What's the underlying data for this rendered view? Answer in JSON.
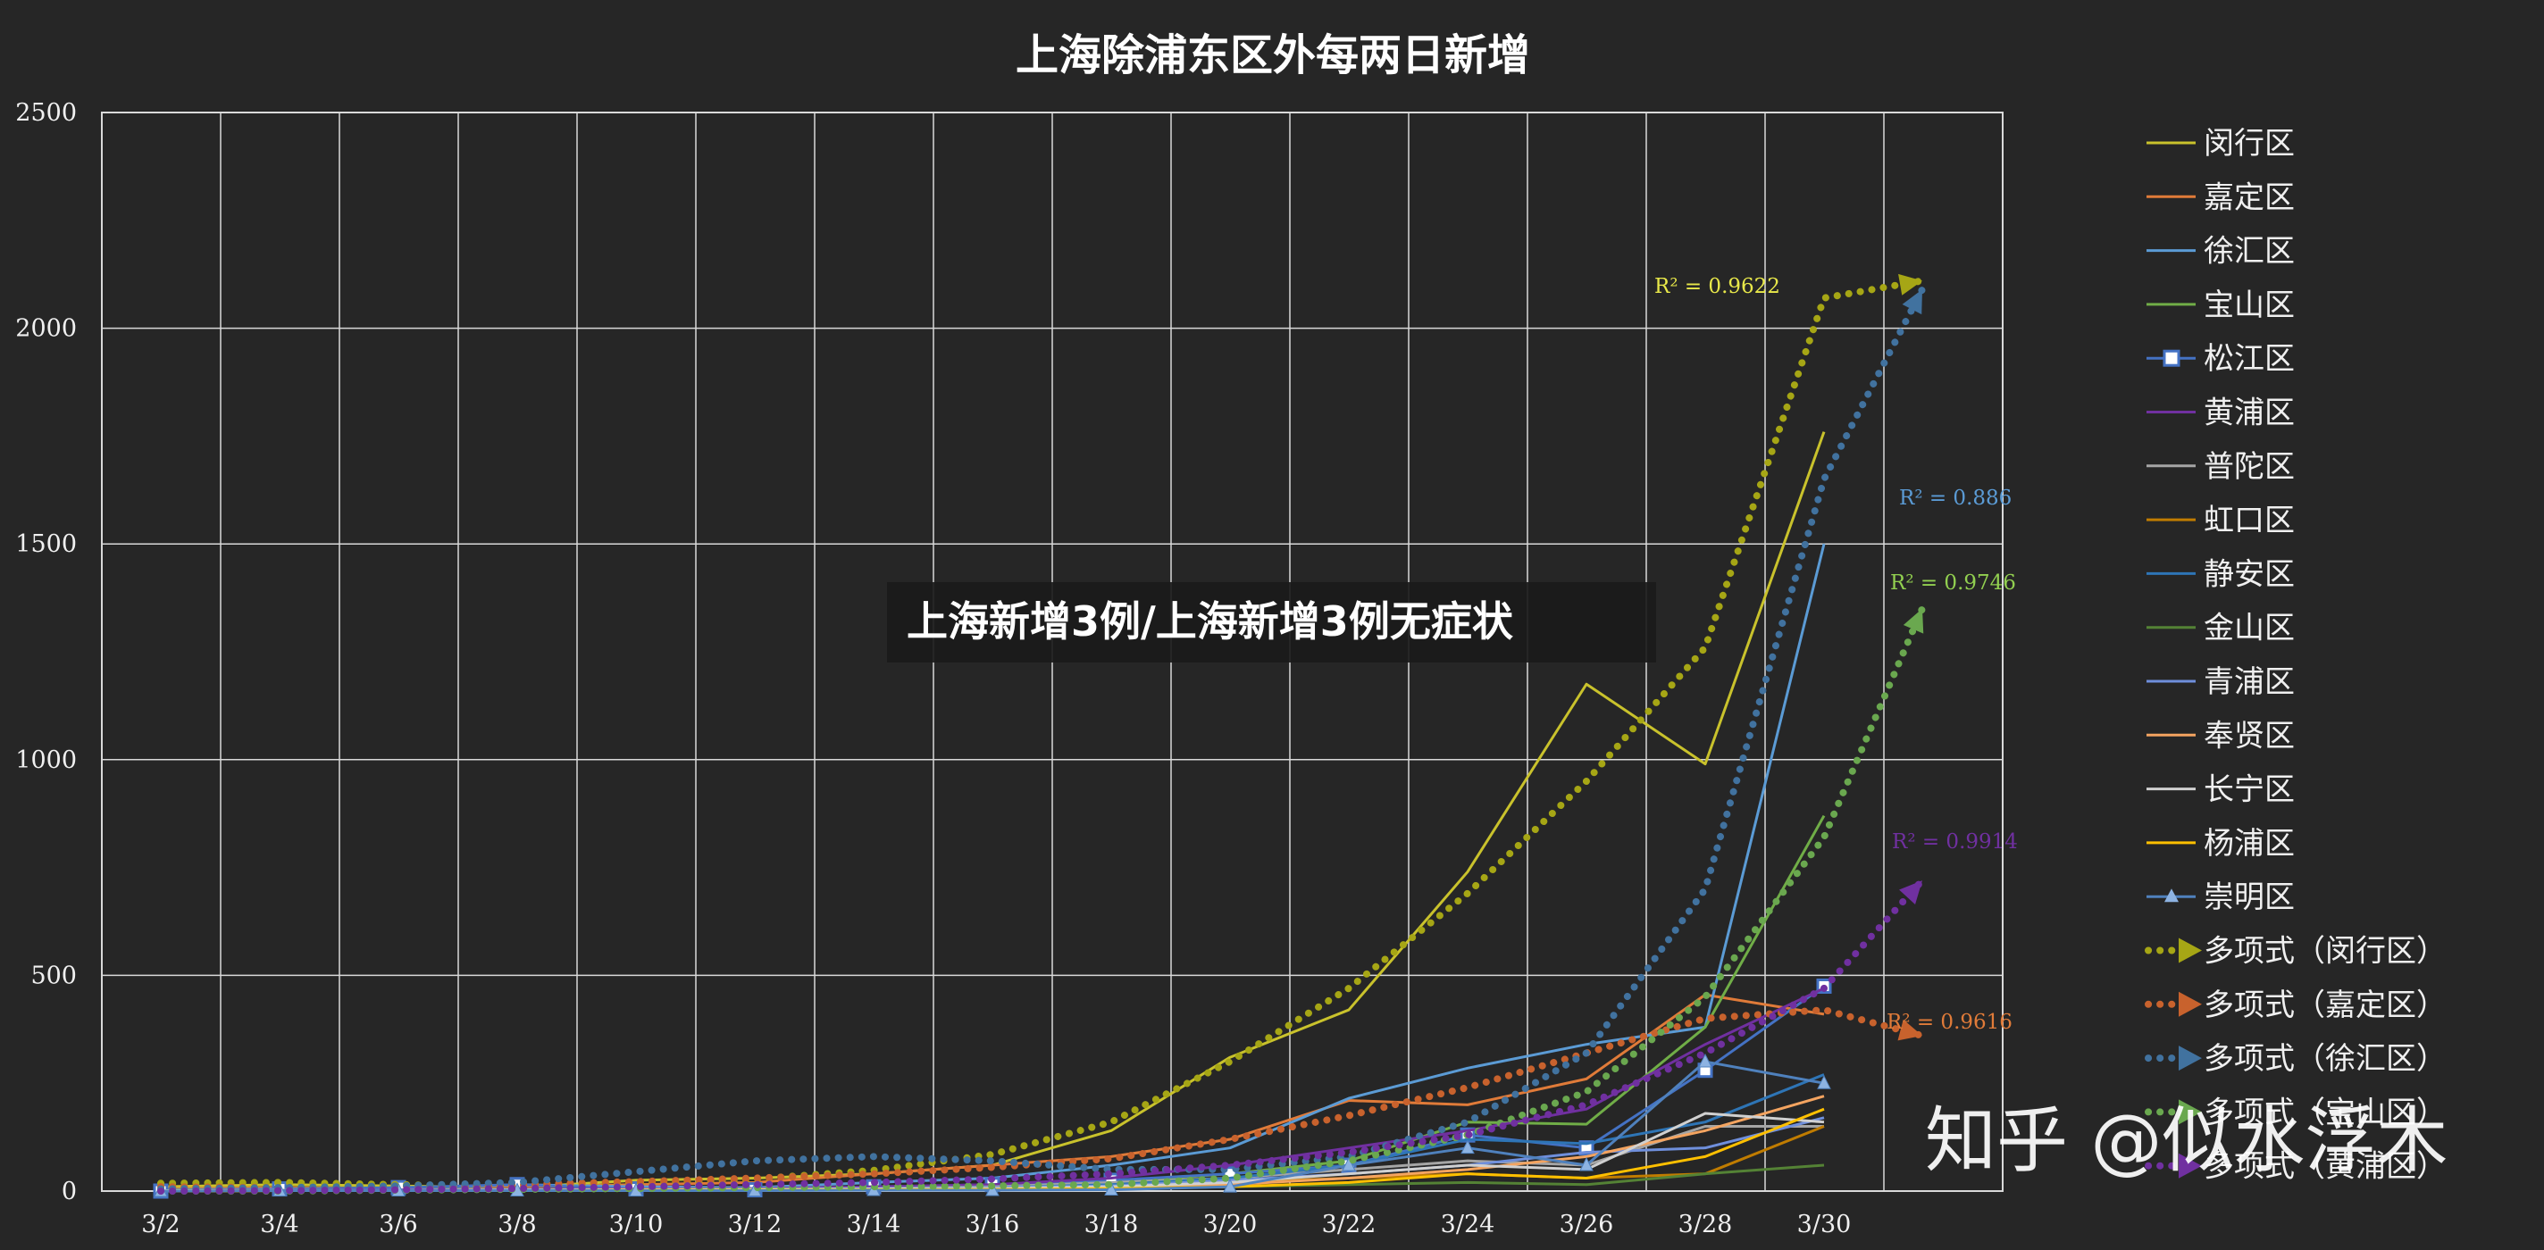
{
  "chart_data": {
    "type": "line",
    "title": "上海除浦东区外每两日新增",
    "overlay_text": "上海新增3例/上海新增3例无症状",
    "watermark": "知乎 @似水浮木",
    "x": [
      "3/2",
      "3/4",
      "3/6",
      "3/8",
      "3/10",
      "3/12",
      "3/14",
      "3/16",
      "3/18",
      "3/20",
      "3/22",
      "3/24",
      "3/26",
      "3/28",
      "3/30"
    ],
    "x_tick_labels": [
      "3/2",
      "3/4",
      "3/6",
      "3/8",
      "3/10",
      "3/12",
      "3/14",
      "3/16",
      "3/18",
      "3/20",
      "3/22",
      "3/24",
      "3/26",
      "3/28",
      "3/30"
    ],
    "ylim": [
      0,
      2500
    ],
    "y_ticks": [
      "0",
      "500",
      "1000",
      "1500",
      "2000",
      "2500"
    ],
    "grid": true,
    "legend_position": "right",
    "series": [
      {
        "name": "闵行区",
        "color": "#c9c22c",
        "marker": "none",
        "values": [
          10,
          15,
          12,
          8,
          25,
          30,
          40,
          60,
          140,
          310,
          420,
          740,
          1175,
          990,
          1760
        ]
      },
      {
        "name": "嘉定区",
        "color": "#e07b39",
        "marker": "none",
        "values": [
          5,
          8,
          6,
          10,
          15,
          20,
          40,
          60,
          80,
          120,
          210,
          200,
          260,
          455,
          410
        ]
      },
      {
        "name": "徐汇区",
        "color": "#5b9bd5",
        "marker": "none",
        "values": [
          3,
          5,
          6,
          15,
          10,
          8,
          20,
          30,
          60,
          100,
          215,
          285,
          340,
          380,
          1500
        ]
      },
      {
        "name": "宝山区",
        "color": "#70ad47",
        "marker": "none",
        "values": [
          2,
          3,
          4,
          5,
          5,
          6,
          8,
          10,
          20,
          40,
          70,
          160,
          155,
          380,
          870
        ]
      },
      {
        "name": "松江区",
        "color": "#4472c4",
        "marker": "square",
        "values": [
          0,
          5,
          8,
          15,
          5,
          3,
          10,
          15,
          25,
          40,
          60,
          130,
          100,
          280,
          475
        ]
      },
      {
        "name": "黄浦区",
        "color": "#7030a0",
        "marker": "none",
        "values": [
          1,
          2,
          3,
          4,
          5,
          6,
          10,
          15,
          30,
          60,
          100,
          140,
          190,
          340,
          470
        ]
      },
      {
        "name": "普陀区",
        "color": "#a5a5a5",
        "marker": "none",
        "values": [
          1,
          2,
          2,
          3,
          4,
          5,
          6,
          10,
          20,
          30,
          50,
          70,
          60,
          150,
          150
        ]
      },
      {
        "name": "虹口区",
        "color": "#c07c00",
        "marker": "none",
        "values": [
          1,
          1,
          2,
          2,
          3,
          3,
          4,
          6,
          10,
          20,
          30,
          40,
          30,
          40,
          150
        ]
      },
      {
        "name": "静安区",
        "color": "#2e75b6",
        "marker": "none",
        "values": [
          1,
          1,
          2,
          2,
          3,
          4,
          5,
          8,
          15,
          30,
          60,
          120,
          110,
          160,
          270
        ]
      },
      {
        "name": "金山区",
        "color": "#548235",
        "marker": "none",
        "values": [
          0,
          1,
          1,
          1,
          2,
          2,
          3,
          4,
          5,
          10,
          15,
          20,
          15,
          40,
          60
        ]
      },
      {
        "name": "青浦区",
        "color": "#6f8fdc",
        "marker": "none",
        "values": [
          1,
          1,
          2,
          3,
          3,
          4,
          6,
          8,
          12,
          25,
          40,
          60,
          90,
          100,
          170
        ]
      },
      {
        "name": "奉贤区",
        "color": "#f4a460",
        "marker": "none",
        "values": [
          0,
          1,
          1,
          2,
          2,
          3,
          4,
          6,
          8,
          15,
          30,
          50,
          80,
          140,
          220
        ]
      },
      {
        "name": "长宁区",
        "color": "#d0d0d0",
        "marker": "none",
        "values": [
          1,
          1,
          1,
          2,
          3,
          3,
          5,
          6,
          10,
          20,
          40,
          60,
          50,
          180,
          160
        ]
      },
      {
        "name": "杨浦区",
        "color": "#ffc000",
        "marker": "none",
        "values": [
          0,
          1,
          1,
          1,
          2,
          2,
          3,
          4,
          6,
          10,
          20,
          40,
          30,
          80,
          190
        ]
      },
      {
        "name": "崇明区",
        "color": "#4f81bd",
        "marker": "triangle",
        "values": [
          0,
          1,
          1,
          1,
          1,
          1,
          2,
          2,
          3,
          10,
          60,
          100,
          60,
          300,
          250
        ]
      }
    ],
    "trendlines": [
      {
        "name": "多项式（闵行区）",
        "color": "#a6a615",
        "values": [
          18,
          20,
          15,
          10,
          18,
          28,
          48,
          85,
          160,
          300,
          470,
          690,
          950,
          1260,
          2070
        ],
        "r2_label": "R² = 0.9622"
      },
      {
        "name": "多项式（嘉定区）",
        "color": "#c8622d",
        "values": [
          10,
          8,
          10,
          15,
          22,
          30,
          40,
          55,
          75,
          120,
          175,
          240,
          320,
          400,
          420
        ],
        "end_value": 360,
        "r2_label": "R² = 0.9616"
      },
      {
        "name": "多项式（徐汇区）",
        "color": "#41729f",
        "values": [
          5,
          8,
          12,
          20,
          45,
          70,
          80,
          70,
          50,
          50,
          80,
          160,
          320,
          700,
          1650
        ],
        "end_value": 2090,
        "r2_label": "R² = 0.886"
      },
      {
        "name": "多项式（宝山区）",
        "color": "#6aa84f",
        "values": [
          0,
          0,
          2,
          4,
          6,
          8,
          10,
          12,
          15,
          30,
          70,
          130,
          230,
          450,
          820
        ],
        "end_value": 1350,
        "r2_label": "R² = 0.9746"
      },
      {
        "name": "多项式（黄浦区）",
        "color": "#7030a0",
        "values": [
          0,
          1,
          3,
          6,
          10,
          15,
          20,
          28,
          40,
          60,
          90,
          130,
          200,
          320,
          470
        ],
        "end_value": 720,
        "r2_label": "R² = 0.9914"
      }
    ],
    "legend_entries": [
      "闵行区",
      "嘉定区",
      "徐汇区",
      "宝山区",
      "松江区",
      "黄浦区",
      "普陀区",
      "虹口区",
      "静安区",
      "金山区",
      "青浦区",
      "奉贤区",
      "长宁区",
      "杨浦区",
      "崇明区",
      "多项式（闵行区）",
      "多项式（嘉定区）",
      "多项式（徐汇区）",
      "多项式（宝山区）",
      "多项式（黄浦区）"
    ]
  }
}
